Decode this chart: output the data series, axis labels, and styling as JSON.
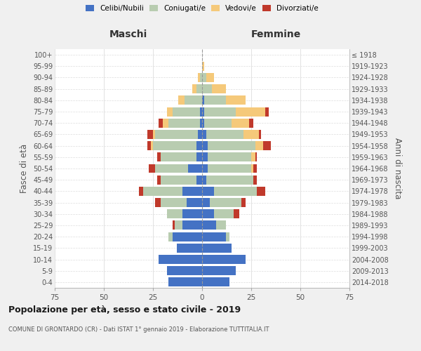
{
  "age_groups": [
    "0-4",
    "5-9",
    "10-14",
    "15-19",
    "20-24",
    "25-29",
    "30-34",
    "35-39",
    "40-44",
    "45-49",
    "50-54",
    "55-59",
    "60-64",
    "65-69",
    "70-74",
    "75-79",
    "80-84",
    "85-89",
    "90-94",
    "95-99",
    "100+"
  ],
  "birth_years": [
    "2014-2018",
    "2009-2013",
    "2004-2008",
    "1999-2003",
    "1994-1998",
    "1989-1993",
    "1984-1988",
    "1979-1983",
    "1974-1978",
    "1969-1973",
    "1964-1968",
    "1959-1963",
    "1954-1958",
    "1949-1953",
    "1944-1948",
    "1939-1943",
    "1934-1938",
    "1929-1933",
    "1924-1928",
    "1919-1923",
    "≤ 1918"
  ],
  "male": {
    "celibi": [
      17,
      18,
      22,
      13,
      15,
      10,
      10,
      8,
      10,
      3,
      7,
      3,
      3,
      2,
      1,
      1,
      0,
      0,
      0,
      0,
      0
    ],
    "coniugati": [
      0,
      0,
      0,
      0,
      2,
      4,
      8,
      13,
      20,
      18,
      17,
      18,
      22,
      22,
      16,
      14,
      9,
      3,
      1,
      0,
      0
    ],
    "vedovi": [
      0,
      0,
      0,
      0,
      0,
      0,
      0,
      0,
      0,
      0,
      0,
      0,
      1,
      1,
      3,
      3,
      3,
      2,
      1,
      0,
      0
    ],
    "divorziati": [
      0,
      0,
      0,
      0,
      0,
      1,
      0,
      3,
      2,
      2,
      3,
      2,
      2,
      3,
      2,
      0,
      0,
      0,
      0,
      0,
      0
    ]
  },
  "female": {
    "nubili": [
      14,
      17,
      22,
      15,
      12,
      7,
      6,
      4,
      6,
      2,
      3,
      3,
      3,
      2,
      1,
      1,
      1,
      0,
      0,
      0,
      0
    ],
    "coniugate": [
      0,
      0,
      0,
      0,
      2,
      5,
      10,
      16,
      22,
      24,
      22,
      22,
      24,
      19,
      14,
      16,
      11,
      5,
      2,
      0,
      0
    ],
    "vedove": [
      0,
      0,
      0,
      0,
      0,
      0,
      0,
      0,
      0,
      0,
      1,
      2,
      4,
      8,
      9,
      15,
      10,
      7,
      4,
      1,
      0
    ],
    "divorziate": [
      0,
      0,
      0,
      0,
      0,
      0,
      3,
      2,
      4,
      2,
      2,
      1,
      4,
      1,
      2,
      2,
      0,
      0,
      0,
      0,
      0
    ]
  },
  "colors": {
    "celibi": "#4472C4",
    "coniugati": "#B8CCB0",
    "vedovi": "#F5C97A",
    "divorziati": "#C0392B"
  },
  "title": "Popolazione per età, sesso e stato civile - 2019",
  "subtitle": "COMUNE DI GRONTARDO (CR) - Dati ISTAT 1° gennaio 2019 - Elaborazione TUTTITALIA.IT",
  "label_maschi": "Maschi",
  "label_femmine": "Femmine",
  "ylabel_left": "Fasce di età",
  "ylabel_right": "Anni di nascita",
  "xlim": 75,
  "bg_color": "#f0f0f0",
  "plot_bg": "#ffffff",
  "legend_labels": [
    "Celibi/Nubili",
    "Coniugati/e",
    "Vedovi/e",
    "Divorziati/e"
  ]
}
